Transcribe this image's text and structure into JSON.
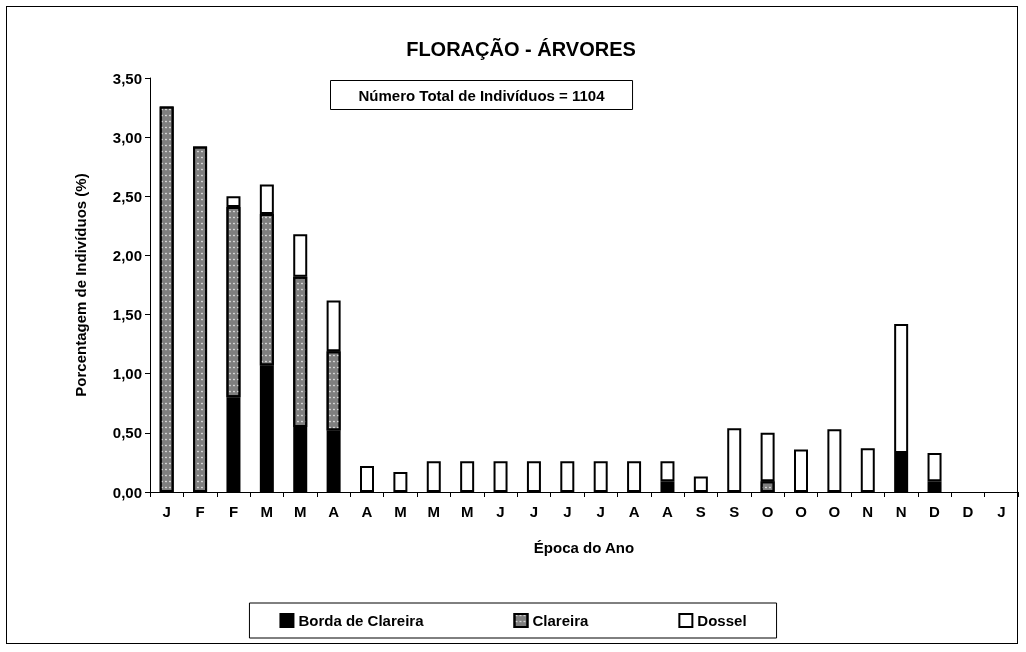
{
  "chart_data": {
    "type": "bar",
    "title": "FLORAÇÃO - ÁRVORES",
    "xlabel": "Época do Ano",
    "ylabel": "Porcentagem de Indivíduos (%)",
    "annotations": [
      "Número Total de Indivíduos = 1104"
    ],
    "categories": [
      "J",
      "F",
      "F",
      "M",
      "M",
      "A",
      "A",
      "M",
      "M",
      "M",
      "J",
      "J",
      "J",
      "J",
      "A",
      "A",
      "S",
      "S",
      "O",
      "O",
      "O",
      "N",
      "N",
      "D",
      "D",
      "J"
    ],
    "stacked": true,
    "series": [
      {
        "name": "Borda de Clareira",
        "color": "#000000",
        "values": [
          null,
          null,
          0.8,
          1.07,
          0.55,
          0.52,
          null,
          null,
          null,
          null,
          null,
          null,
          null,
          null,
          null,
          0.09,
          null,
          null,
          null,
          null,
          null,
          null,
          0.33,
          0.09,
          null,
          null
        ]
      },
      {
        "name": "Clareira",
        "color": "#7f7f7f",
        "values": [
          3.26,
          2.92,
          1.61,
          1.28,
          1.27,
          0.67,
          null,
          null,
          null,
          null,
          null,
          null,
          null,
          null,
          null,
          null,
          null,
          null,
          0.09,
          null,
          null,
          null,
          null,
          null,
          null,
          null
        ]
      },
      {
        "name": "Dossel",
        "color": "#ffffff",
        "values": [
          null,
          null,
          0.09,
          0.25,
          0.36,
          0.43,
          0.22,
          0.17,
          0.26,
          0.26,
          0.26,
          0.26,
          0.26,
          0.26,
          0.26,
          0.17,
          0.13,
          0.54,
          0.41,
          0.36,
          0.53,
          0.37,
          1.09,
          0.24,
          null,
          null
        ]
      }
    ],
    "ylim": [
      0,
      3.5
    ],
    "yticks": [
      {
        "value": 0,
        "label": "0,00"
      },
      {
        "value": 0.5,
        "label": "0,50"
      },
      {
        "value": 1,
        "label": "1,00"
      },
      {
        "value": 1.5,
        "label": "1,50"
      },
      {
        "value": 2,
        "label": "2,00"
      },
      {
        "value": 2.5,
        "label": "2,50"
      },
      {
        "value": 3,
        "label": "3,00"
      },
      {
        "value": 3.5,
        "label": "3,50"
      }
    ],
    "grid": false,
    "legend": "bottom"
  }
}
